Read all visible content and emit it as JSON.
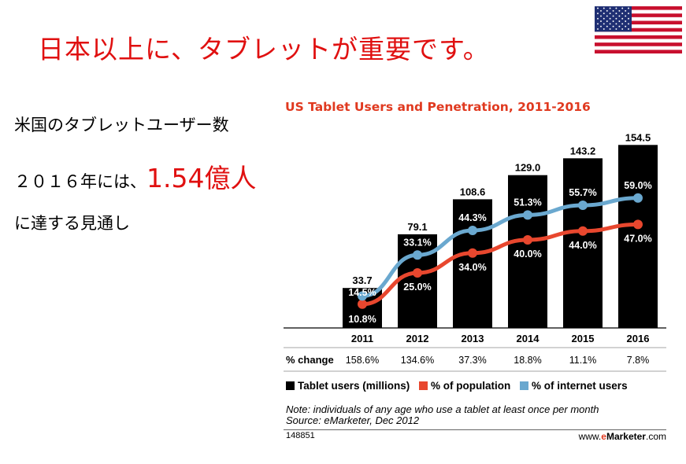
{
  "slide": {
    "headline": "日本以上に、タブレットが重要です。",
    "flag_icon": "us-flag-icon",
    "side_text": {
      "line1": "米国のタブレットユーザー数",
      "line2_prefix": "２０１６年には、",
      "line2_highlight": "1.54億人",
      "line3": "に達する見通し"
    },
    "colors": {
      "headline": "#e01010",
      "highlight": "#e01010"
    }
  },
  "chart_data": {
    "type": "bar",
    "title": "US Tablet Users and Penetration, 2011-2016",
    "categories": [
      "2011",
      "2012",
      "2013",
      "2014",
      "2015",
      "2016"
    ],
    "series": [
      {
        "name": "Tablet users (millions)",
        "kind": "bar",
        "color": "#000000",
        "values": [
          33.7,
          79.1,
          108.6,
          129.0,
          143.2,
          154.5
        ],
        "labels": [
          "33.7",
          "79.1",
          "108.6",
          "129.0",
          "143.2",
          "154.5"
        ]
      },
      {
        "name": "% of population",
        "kind": "line",
        "color": "#e8472e",
        "values": [
          10.8,
          25.0,
          34.0,
          40.0,
          44.0,
          47.0
        ],
        "labels": [
          "10.8%",
          "25.0%",
          "34.0%",
          "40.0%",
          "44.0%",
          "47.0%"
        ]
      },
      {
        "name": "% of internet users",
        "kind": "line",
        "color": "#6aa8cf",
        "values": [
          14.5,
          33.1,
          44.3,
          51.3,
          55.7,
          59.0
        ],
        "labels": [
          "14.5%",
          "33.1%",
          "44.3%",
          "51.3%",
          "55.7%",
          "59.0%"
        ]
      }
    ],
    "pct_change": {
      "label": "% change",
      "values": [
        "158.6%",
        "134.6%",
        "37.3%",
        "18.8%",
        "11.1%",
        "7.8%"
      ]
    },
    "legend": [
      "Tablet users (millions)",
      "% of population",
      "% of internet users"
    ],
    "legend_position": "bottom",
    "ylim": [
      0,
      160
    ],
    "grid": false,
    "note": "Note: individuals of any age who use a tablet at least once per month",
    "source": "Source: eMarketer, Dec 2012",
    "chart_id": "148851",
    "brand": {
      "prefix": "www.",
      "e": "e",
      "name": "Marketer",
      "suffix": ".com"
    }
  }
}
